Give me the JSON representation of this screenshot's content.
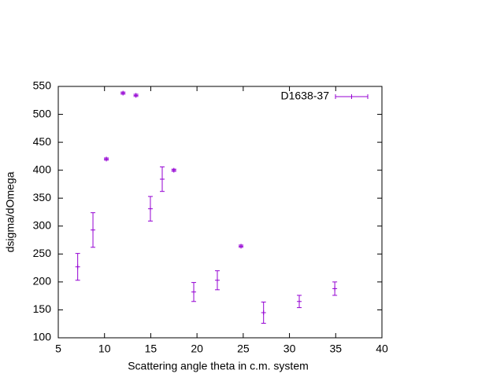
{
  "chart_data": {
    "type": "errorbar",
    "xlabel": "Scattering angle theta in c.m. system",
    "ylabel": "dsigma/dOmega",
    "xlim": [
      5,
      40
    ],
    "xticks": [
      5,
      10,
      15,
      20,
      25,
      30,
      35,
      40
    ],
    "ylim": [
      100,
      550
    ],
    "yticks": [
      100,
      150,
      200,
      250,
      300,
      350,
      400,
      450,
      500,
      550
    ],
    "grid": false,
    "legend": "top-right",
    "series": [
      {
        "name": "D1638-37",
        "color": "#9400d3",
        "x": [
          7.1,
          8.75,
          10.2,
          12.0,
          13.4,
          14.96,
          16.24,
          17.5,
          19.65,
          22.2,
          24.76,
          27.2,
          31.06,
          34.9
        ],
        "values": [
          227,
          293,
          420,
          538,
          534,
          331,
          384,
          400,
          182,
          203,
          264,
          145,
          165,
          188
        ],
        "errors": [
          24,
          31,
          2,
          2,
          2,
          22,
          22,
          2,
          17,
          17,
          2,
          19,
          11,
          12
        ]
      }
    ]
  }
}
